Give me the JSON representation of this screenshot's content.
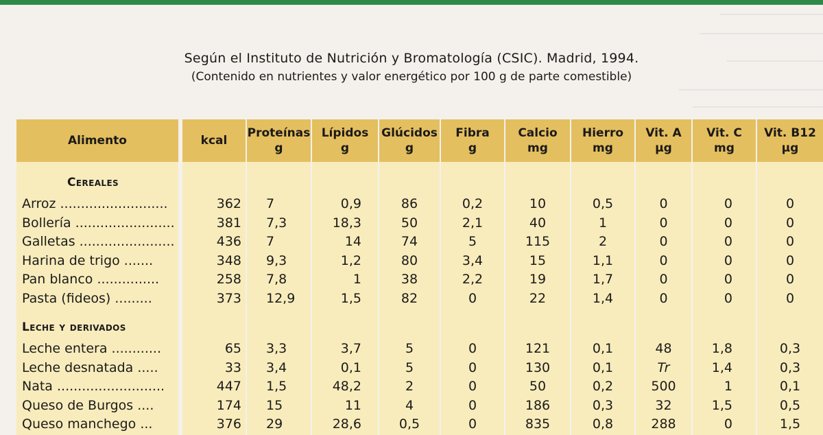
{
  "title": "Según el Instituto de Nutrición y Bromatología (CSIC). Madrid, 1994.",
  "subtitle": "(Contenido en nutrientes y valor energético por 100 g de parte comestible)",
  "colors": {
    "header": "#e4bf60",
    "column": "#f8ecbd",
    "accent_green": "#2f8a4a"
  },
  "headers": [
    {
      "name": "Alimento",
      "unit": ""
    },
    {
      "name": "kcal",
      "unit": ""
    },
    {
      "name": "Proteínas",
      "unit": "g"
    },
    {
      "name": "Lípidos",
      "unit": "g"
    },
    {
      "name": "Glúcidos",
      "unit": "g"
    },
    {
      "name": "Fibra",
      "unit": "g"
    },
    {
      "name": "Calcio",
      "unit": "mg"
    },
    {
      "name": "Hierro",
      "unit": "mg"
    },
    {
      "name": "Vit. A",
      "unit": "µg"
    },
    {
      "name": "Vit. C",
      "unit": "mg"
    },
    {
      "name": "Vit. B12",
      "unit": "µg"
    }
  ],
  "sections": [
    {
      "title": "Cereales",
      "rows": [
        {
          "name": "Arroz ..........................",
          "values": [
            "362",
            "7",
            "0,9",
            "86",
            "0,2",
            "10",
            "0,5",
            "0",
            "0",
            "0"
          ]
        },
        {
          "name": "Bollería .........................",
          "values": [
            "381",
            "7,3",
            "18,3",
            "50",
            "2,1",
            "40",
            "1",
            "0",
            "0",
            "0"
          ]
        },
        {
          "name": "Galletas .........................",
          "values": [
            "436",
            "7",
            "14",
            "74",
            "5",
            "115",
            "2",
            "0",
            "0",
            "0"
          ]
        },
        {
          "name": "Harina de trigo .......",
          "values": [
            "348",
            "9,3",
            "1,2",
            "80",
            "3,4",
            "15",
            "1,1",
            "0",
            "0",
            "0"
          ]
        },
        {
          "name": "Pan blanco ...............",
          "values": [
            "258",
            "7,8",
            "1",
            "38",
            "2,2",
            "19",
            "1,7",
            "0",
            "0",
            "0"
          ]
        },
        {
          "name": "Pasta (fideos) .........",
          "values": [
            "373",
            "12,9",
            "1,5",
            "82",
            "0",
            "22",
            "1,4",
            "0",
            "0",
            "0"
          ]
        }
      ]
    },
    {
      "title": "Leche y derivados",
      "rows": [
        {
          "name": "Leche entera ............",
          "values": [
            "65",
            "3,3",
            "3,7",
            "5",
            "0",
            "121",
            "0,1",
            "48",
            "1,8",
            "0,3"
          ]
        },
        {
          "name": "Leche desnatada .....",
          "values": [
            "33",
            "3,4",
            "0,1",
            "5",
            "0",
            "130",
            "0,1",
            "Tr",
            "1,4",
            "0,3"
          ]
        },
        {
          "name": "Nata ..........................",
          "values": [
            "447",
            "1,5",
            "48,2",
            "2",
            "0",
            "50",
            "0,2",
            "500",
            "1",
            "0,1"
          ]
        },
        {
          "name": "Queso de Burgos ....",
          "values": [
            "174",
            "15",
            "11",
            "4",
            "0",
            "186",
            "0,3",
            "32",
            "1,5",
            "0,5"
          ]
        },
        {
          "name": "Queso manchego ...",
          "values": [
            "376",
            "29",
            "28,6",
            "0,5",
            "0",
            "835",
            "0,8",
            "288",
            "0",
            "1,5"
          ]
        }
      ]
    }
  ]
}
